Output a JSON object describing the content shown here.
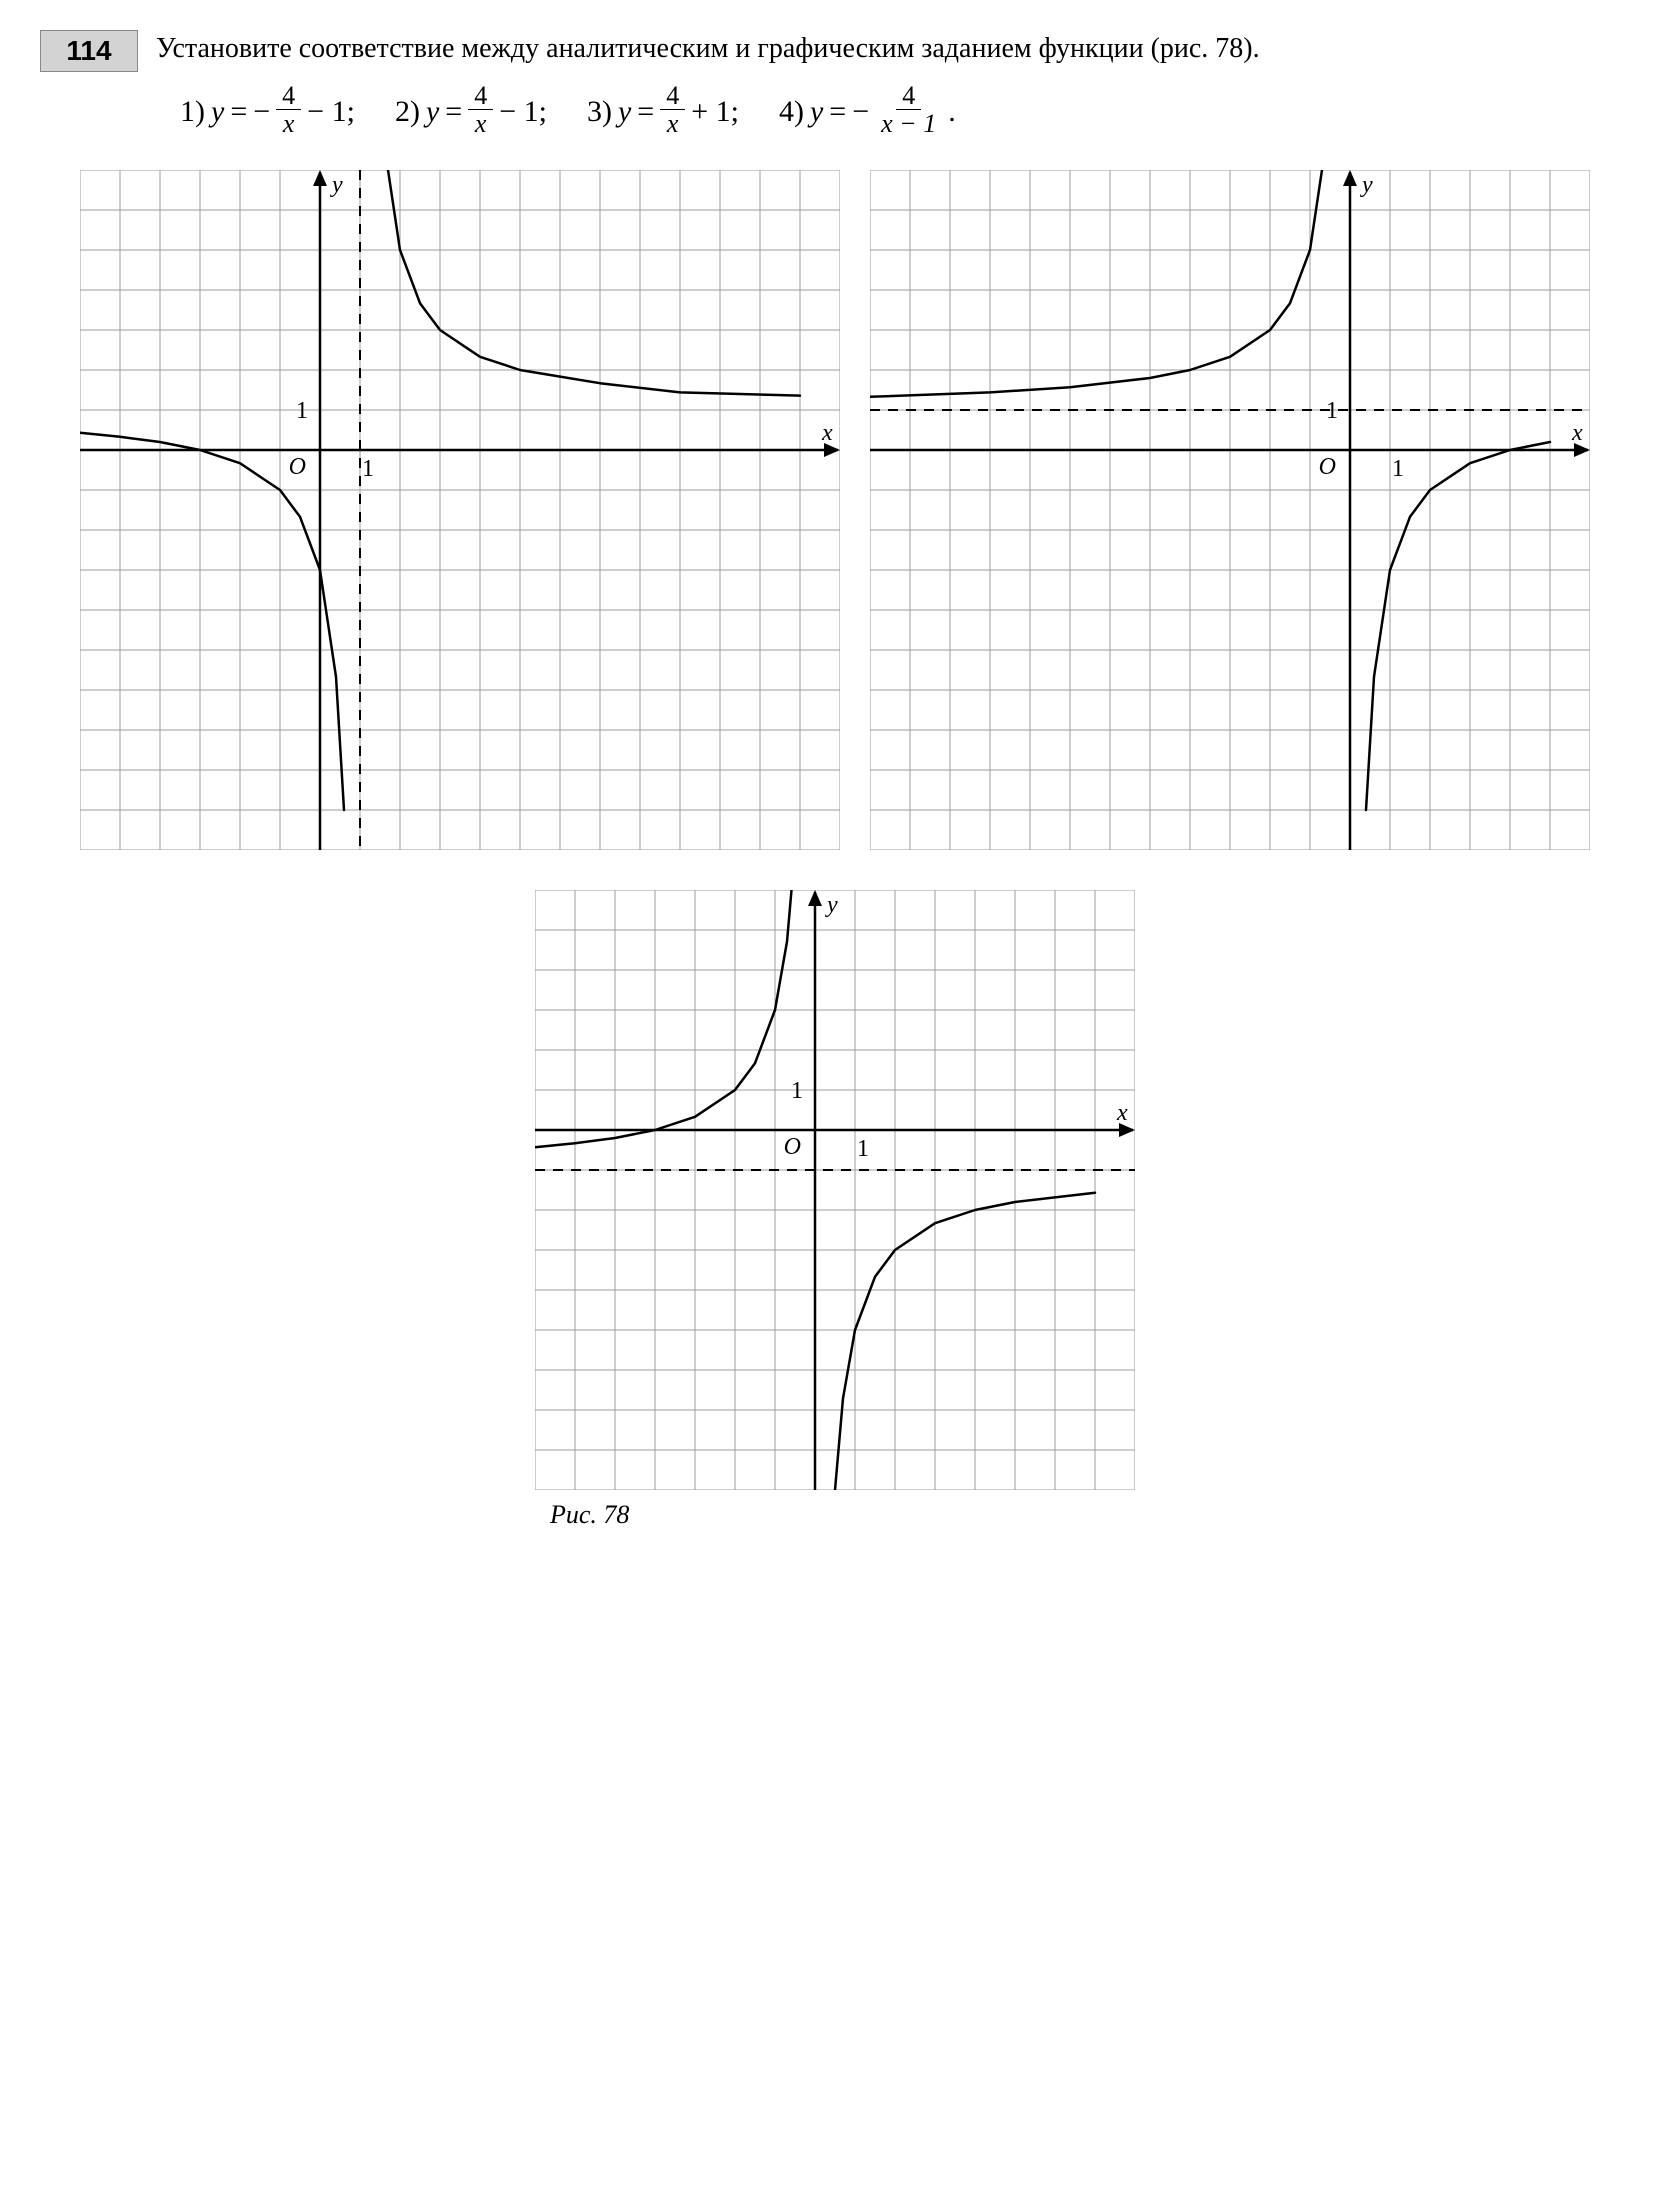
{
  "problem": {
    "number": "114",
    "text": "Установите соответствие между аналитическим и графическим заданием функции (рис. 78).",
    "figure_caption": "Рис. 78"
  },
  "formulas": {
    "f1": {
      "num": "1)",
      "lhs": "y",
      "eq": "=",
      "pre": "−",
      "frac_num": "4",
      "frac_den": "x",
      "post": "− 1;"
    },
    "f2": {
      "num": "2)",
      "lhs": "y",
      "eq": "=",
      "pre": "",
      "frac_num": "4",
      "frac_den": "x",
      "post": "− 1;"
    },
    "f3": {
      "num": "3)",
      "lhs": "y",
      "eq": "=",
      "pre": "",
      "frac_num": "4",
      "frac_den": "x",
      "post": "+ 1;"
    },
    "f4": {
      "num": "4)",
      "lhs": "y",
      "eq": "=",
      "pre": "−",
      "frac_num": "4",
      "frac_den": "x − 1",
      "post": "."
    }
  },
  "style": {
    "grid_color": "#9e9e9e",
    "axis_color": "#000000",
    "curve_color": "#000000",
    "asymptote_color": "#000000",
    "asymptote_dash": "10 8",
    "bg_color": "#ffffff",
    "cell": 40,
    "curve_width": 2.5,
    "axis_width": 2.5,
    "grid_width": 1,
    "label_font_size": 24
  },
  "labels": {
    "origin": "O",
    "one": "1",
    "x": "x",
    "y": "y"
  },
  "graph1": {
    "type": "hyperbola",
    "cols": 19,
    "rows": 17,
    "origin_col": 6,
    "origin_row": 7,
    "vasym_x": 1,
    "hasym_y": null,
    "branch1": [
      [
        -6,
        0.43
      ],
      [
        -5,
        0.33
      ],
      [
        -4,
        0.2
      ],
      [
        -3,
        0
      ],
      [
        -2,
        -0.33
      ],
      [
        -1,
        -1
      ],
      [
        -0.5,
        -1.67
      ],
      [
        0,
        -3
      ],
      [
        0.4,
        -5.67
      ],
      [
        0.6,
        -9
      ]
    ],
    "branch2": [
      [
        1.4,
        10
      ],
      [
        1.6,
        7.67
      ],
      [
        2,
        5
      ],
      [
        2.5,
        3.67
      ],
      [
        3,
        3
      ],
      [
        4,
        2.33
      ],
      [
        5,
        2
      ],
      [
        7,
        1.67
      ],
      [
        9,
        1.44
      ],
      [
        12,
        1.36
      ]
    ]
  },
  "graph2": {
    "type": "hyperbola",
    "cols": 18,
    "rows": 17,
    "origin_col": 12,
    "origin_row": 7,
    "vasym_x": null,
    "hasym_y": 1,
    "branch1": [
      [
        -12,
        1.33
      ],
      [
        -9,
        1.44
      ],
      [
        -7,
        1.57
      ],
      [
        -5,
        1.8
      ],
      [
        -4,
        2
      ],
      [
        -3,
        2.33
      ],
      [
        -2,
        3
      ],
      [
        -1.5,
        3.67
      ],
      [
        -1,
        5
      ],
      [
        -0.6,
        7.67
      ],
      [
        -0.4,
        10
      ]
    ],
    "branch2": [
      [
        0.4,
        -9
      ],
      [
        0.6,
        -5.67
      ],
      [
        1,
        -3
      ],
      [
        1.5,
        -1.67
      ],
      [
        2,
        -1
      ],
      [
        3,
        -0.33
      ],
      [
        4,
        0
      ],
      [
        5,
        0.2
      ]
    ]
  },
  "graph3": {
    "type": "hyperbola",
    "cols": 15,
    "rows": 15,
    "origin_col": 7,
    "origin_row": 6,
    "vasym_x": null,
    "hasym_y": -1,
    "branch1": [
      [
        -7,
        -0.43
      ],
      [
        -6,
        -0.33
      ],
      [
        -5,
        -0.2
      ],
      [
        -4,
        0
      ],
      [
        -3,
        0.33
      ],
      [
        -2,
        1
      ],
      [
        -1.5,
        1.67
      ],
      [
        -1,
        3
      ],
      [
        -0.7,
        4.71
      ],
      [
        -0.5,
        7
      ]
    ],
    "branch2": [
      [
        0.5,
        -9
      ],
      [
        0.7,
        -6.71
      ],
      [
        1,
        -5
      ],
      [
        1.5,
        -3.67
      ],
      [
        2,
        -3
      ],
      [
        3,
        -2.33
      ],
      [
        4,
        -2
      ],
      [
        5,
        -1.8
      ],
      [
        7,
        -1.57
      ]
    ]
  }
}
